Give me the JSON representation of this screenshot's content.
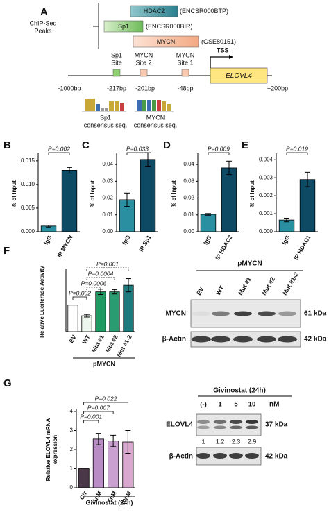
{
  "panel_a": {
    "label": "A",
    "peaks_label": [
      "ChIP-Seq",
      "Peaks"
    ],
    "peaks": [
      {
        "name": "HDAC2",
        "id": "(ENCSR000BTP)"
      },
      {
        "name": "Sp1",
        "id": "(ENCSR000BIR)"
      },
      {
        "name": "MYCN",
        "id": "(GSE80151)"
      }
    ],
    "tss": "TSS",
    "gene": "ELOVL4",
    "start": "-1000bp",
    "end": "+200bp",
    "sites": [
      {
        "name": [
          "Sp1",
          "Site"
        ],
        "position": "-217bp"
      },
      {
        "name": [
          "MYCN",
          "Site 2"
        ],
        "position": "-201bp"
      },
      {
        "name": [
          "MYCN",
          "Site 1"
        ],
        "position": "-48bp"
      }
    ],
    "consensus": [
      [
        "Sp1",
        "consensus seq."
      ],
      [
        "MYCN",
        "consensus seq."
      ]
    ]
  },
  "chart_data": [
    {
      "type": "bar",
      "label": "B",
      "y_label": "% of Input",
      "categories": [
        "IgG",
        "IP MYCN"
      ],
      "values": [
        0.0012,
        0.013
      ],
      "errors": [
        0.0002,
        0.0006
      ],
      "colors": [
        "#2a8fa0",
        "#0e4a63"
      ],
      "ylim": [
        0,
        0.016
      ],
      "yticks": [
        {
          "value": 0,
          "label": "0.000"
        },
        0.005,
        {
          "value": 0.01,
          "label": "0.010"
        },
        0.015
      ],
      "annotations": [
        "P=0.002"
      ]
    },
    {
      "type": "bar",
      "label": "C",
      "y_label": "% of Input",
      "categories": [
        "IgG",
        "IP Sp1"
      ],
      "values": [
        0.019,
        0.043
      ],
      "errors": [
        0.004,
        0.004
      ],
      "colors": [
        "#2a8fa0",
        "#0e4a63"
      ],
      "ylim": [
        0,
        0.045
      ],
      "yticks": [
        {
          "value": 0,
          "label": "0.00"
        },
        {
          "value": 0.01,
          "label": "0.01"
        },
        {
          "value": 0.02,
          "label": "0.02"
        },
        {
          "value": 0.03,
          "label": "0.03"
        },
        {
          "value": 0.04,
          "label": "0.04"
        }
      ],
      "annotations": [
        "P=0.033"
      ]
    },
    {
      "type": "bar",
      "label": "D",
      "y_label": "% of Input",
      "categories": [
        "IgG",
        "IP HDAC2"
      ],
      "values": [
        0.0103,
        0.038
      ],
      "errors": [
        0.0005,
        0.004
      ],
      "colors": [
        "#2a8fa0",
        "#0e4a63"
      ],
      "ylim": [
        0,
        0.045
      ],
      "yticks": [
        {
          "value": 0,
          "label": "0.00"
        },
        {
          "value": 0.01,
          "label": "0.01"
        },
        {
          "value": 0.02,
          "label": "0.02"
        },
        {
          "value": 0.03,
          "label": "0.03"
        },
        {
          "value": 0.04,
          "label": "0.04"
        }
      ],
      "annotations": [
        "P=0.009"
      ]
    },
    {
      "type": "bar",
      "label": "E",
      "y_label": "% of Input",
      "categories": [
        "IgG",
        "IP HDAC1"
      ],
      "values": [
        0.00065,
        0.0029
      ],
      "errors": [
        0.0001,
        0.0004
      ],
      "colors": [
        "#2a8fa0",
        "#0e4a63"
      ],
      "ylim": [
        0,
        0.0042
      ],
      "yticks": [
        {
          "value": 0,
          "label": "0.000"
        },
        0.001,
        0.002,
        0.003,
        0.004
      ],
      "annotations": [
        "P=0.019"
      ]
    },
    {
      "type": "bar",
      "label": "F",
      "y_label": "Relative Luciferase Activity",
      "categories": [
        "EV",
        "WT",
        "Mut #1",
        "Mut #2",
        "Mut #1-2"
      ],
      "values": [
        1.0,
        0.6,
        1.5,
        1.5,
        1.75
      ],
      "errors": [
        0,
        0.05,
        0.1,
        0.08,
        0.25
      ],
      "colors": [
        "#ffffff",
        "#eef7ee",
        "#1f9a62",
        "#2a9c72",
        "#1c7b7c"
      ],
      "ylim": [
        0,
        2.25
      ],
      "annotations": [
        "P=0.002",
        "P=0.0006",
        "P=0.0004",
        "P=0.001"
      ],
      "group_label": "pMYCN"
    },
    {
      "type": "bar",
      "label": "G",
      "y_label": [
        "Relative ELOVL4 mRNA",
        "expression"
      ],
      "categories": [
        "Ctr",
        "1nM",
        "5nM",
        "10nM"
      ],
      "values": [
        1,
        2.55,
        2.45,
        2.4
      ],
      "errors": [
        0,
        0.3,
        0.3,
        0.6
      ],
      "colors": [
        "#4a3848",
        "#b98cc6",
        "#c9a0cf",
        "#d8a8cf"
      ],
      "ylim": [
        0,
        4
      ],
      "yticks": [
        0,
        1,
        2,
        3,
        4
      ],
      "annotations": [
        "P=0.022",
        "P=0.007",
        "P=0.001"
      ],
      "group_label": "Givinostat (24h)"
    }
  ],
  "blot_f": {
    "title": "pMYCN",
    "lanes": [
      "EV",
      "WT",
      "Mut #1",
      "Mut #2",
      "Mut #1-2"
    ],
    "rows": [
      {
        "label": "MYCN",
        "size": "61 kDa"
      },
      {
        "label": "β-Actin",
        "size": "42 kDa"
      }
    ]
  },
  "blot_g": {
    "title": "Givinostat (24h)",
    "lanes": [
      "(-)",
      "1",
      "5",
      "10"
    ],
    "unit": "nM",
    "rows": [
      {
        "label": "ELOVL4",
        "size": "37 kDa"
      },
      {
        "label": "β-Actin",
        "size": "42 kDa"
      }
    ],
    "quantification": [
      1,
      1.2,
      2.3,
      2.9
    ]
  }
}
